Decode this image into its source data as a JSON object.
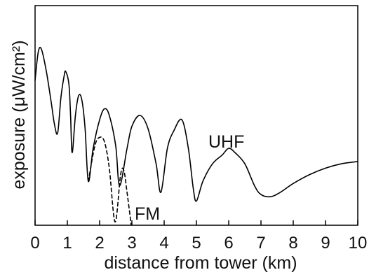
{
  "chart_data": {
    "type": "line",
    "xlabel": "distance from tower (km)",
    "ylabel": "exposure (μW/cm²)",
    "xlim": [
      0,
      10
    ],
    "ylim": [
      0,
      10
    ],
    "x_ticks": [
      "0",
      "1",
      "2",
      "3",
      "4",
      "5",
      "6",
      "7",
      "8",
      "9",
      "10"
    ],
    "y_ticks": [],
    "grid": false,
    "legend": "none",
    "series": [
      {
        "name": "UHF",
        "style": "solid",
        "color": "#000000",
        "points": [
          [
            0.0,
            6.6
          ],
          [
            0.1,
            7.9
          ],
          [
            0.2,
            8.0
          ],
          [
            0.35,
            7.0
          ],
          [
            0.5,
            5.6
          ],
          [
            0.6,
            4.6
          ],
          [
            0.7,
            4.2
          ],
          [
            0.8,
            5.8
          ],
          [
            0.9,
            6.8
          ],
          [
            0.95,
            7.0
          ],
          [
            1.05,
            6.4
          ],
          [
            1.1,
            5.0
          ],
          [
            1.15,
            3.3
          ],
          [
            1.25,
            5.0
          ],
          [
            1.35,
            5.9
          ],
          [
            1.45,
            5.7
          ],
          [
            1.55,
            4.4
          ],
          [
            1.65,
            2.0
          ],
          [
            1.8,
            3.5
          ],
          [
            2.0,
            4.8
          ],
          [
            2.15,
            5.3
          ],
          [
            2.3,
            5.0
          ],
          [
            2.5,
            3.6
          ],
          [
            2.62,
            1.8
          ],
          [
            2.85,
            3.5
          ],
          [
            3.0,
            4.5
          ],
          [
            3.25,
            5.0
          ],
          [
            3.5,
            4.4
          ],
          [
            3.75,
            2.8
          ],
          [
            3.9,
            1.5
          ],
          [
            4.1,
            3.5
          ],
          [
            4.3,
            4.3
          ],
          [
            4.55,
            4.8
          ],
          [
            4.75,
            3.5
          ],
          [
            4.9,
            1.7
          ],
          [
            5.0,
            1.1
          ],
          [
            5.2,
            2.0
          ],
          [
            5.5,
            2.8
          ],
          [
            5.8,
            3.2
          ],
          [
            6.0,
            3.5
          ],
          [
            6.2,
            3.3
          ],
          [
            6.5,
            2.8
          ],
          [
            6.8,
            1.8
          ],
          [
            7.0,
            1.4
          ],
          [
            7.3,
            1.3
          ],
          [
            7.6,
            1.5
          ],
          [
            8.0,
            1.9
          ],
          [
            8.5,
            2.3
          ],
          [
            9.0,
            2.6
          ],
          [
            9.5,
            2.8
          ],
          [
            10.0,
            2.9
          ]
        ]
      },
      {
        "name": "FM",
        "style": "dashed",
        "color": "#000000",
        "points": [
          [
            1.65,
            2.0
          ],
          [
            1.85,
            3.6
          ],
          [
            2.0,
            4.0
          ],
          [
            2.15,
            3.8
          ],
          [
            2.3,
            2.6
          ],
          [
            2.48,
            0.15
          ],
          [
            2.65,
            2.3
          ],
          [
            2.75,
            2.5
          ],
          [
            2.85,
            1.5
          ],
          [
            2.98,
            0.0
          ]
        ]
      }
    ]
  }
}
